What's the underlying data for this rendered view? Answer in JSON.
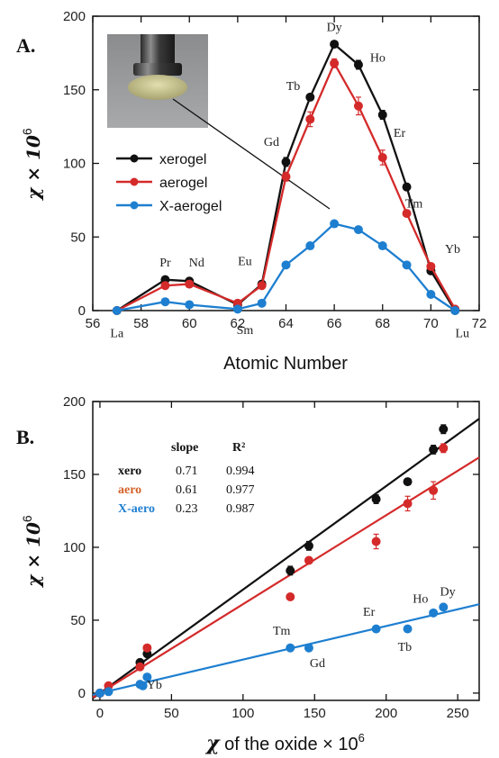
{
  "colors": {
    "xerogel": "#111111",
    "aerogel": "#d42a2a",
    "x_aerogel": "#1e7fd0"
  },
  "chart_data": [
    {
      "panel": "A.",
      "type": "line",
      "xlabel": "Atomic Number",
      "ylabel_main": "χ × 10",
      "ylabel_exp": "6",
      "xlim": [
        56,
        72
      ],
      "ylim": [
        0,
        200
      ],
      "xticks": [
        56,
        58,
        60,
        62,
        64,
        66,
        68,
        70,
        72
      ],
      "yticks": [
        0,
        50,
        100,
        150,
        200
      ],
      "grid": false,
      "legend_position": "middle-left",
      "series": [
        {
          "name": "xerogel",
          "key": "xerogel",
          "x": [
            57,
            59,
            60,
            62,
            63,
            64,
            65,
            66,
            67,
            68,
            69,
            70,
            71
          ],
          "y": [
            0,
            21,
            20,
            4,
            18,
            101,
            145,
            181,
            167,
            133,
            84,
            27,
            0
          ],
          "err": [
            0,
            2,
            2,
            1,
            2,
            3,
            2,
            2,
            3,
            3,
            2,
            2,
            0
          ]
        },
        {
          "name": "aerogel",
          "key": "aerogel",
          "x": [
            57,
            59,
            60,
            62,
            63,
            64,
            65,
            66,
            67,
            68,
            69,
            70,
            71
          ],
          "y": [
            0,
            17,
            18,
            5,
            17,
            91,
            130,
            168,
            139,
            104,
            66,
            30,
            1
          ],
          "err": [
            0,
            2,
            2,
            1,
            2,
            3,
            5,
            3,
            6,
            5,
            2,
            2,
            0
          ]
        },
        {
          "name": "X-aerogel",
          "key": "x_aerogel",
          "x": [
            57,
            59,
            60,
            62,
            63,
            64,
            65,
            66,
            67,
            68,
            69,
            70,
            71
          ],
          "y": [
            0,
            6,
            4,
            1,
            5,
            31,
            44,
            59,
            55,
            44,
            31,
            11,
            0
          ],
          "err": [
            0,
            1,
            1,
            1,
            1,
            1,
            1,
            1,
            1,
            1,
            1,
            1,
            0
          ]
        }
      ],
      "element_labels": [
        {
          "text": "La",
          "x": 57,
          "y": -18
        },
        {
          "text": "Pr",
          "x": 59,
          "y": 30
        },
        {
          "text": "Nd",
          "x": 60.3,
          "y": 30
        },
        {
          "text": "Sm",
          "x": 62.3,
          "y": -16
        },
        {
          "text": "Eu",
          "x": 62.3,
          "y": 31
        },
        {
          "text": "Gd",
          "x": 63.4,
          "y": 112
        },
        {
          "text": "Tb",
          "x": 64.3,
          "y": 150
        },
        {
          "text": "Dy",
          "x": 66,
          "y": 190
        },
        {
          "text": "Ho",
          "x": 67.8,
          "y": 169
        },
        {
          "text": "Er",
          "x": 68.7,
          "y": 118
        },
        {
          "text": "Tm",
          "x": 69.3,
          "y": 70
        },
        {
          "text": "Yb",
          "x": 70.9,
          "y": 39
        },
        {
          "text": "Lu",
          "x": 71.3,
          "y": -18
        }
      ]
    },
    {
      "panel": "B.",
      "type": "scatter",
      "xlabel_main": "χ",
      "xlabel_rest": " of the oxide × 10",
      "xlabel_exp": "6",
      "ylabel_main": "χ × 10",
      "ylabel_exp": "6",
      "xlim": [
        -5,
        265
      ],
      "ylim": [
        -5,
        200
      ],
      "xticks": [
        0,
        50,
        100,
        150,
        200,
        250
      ],
      "yticks": [
        0,
        50,
        100,
        150,
        200
      ],
      "grid": false,
      "table": {
        "headers": [
          "slope",
          "R²"
        ],
        "rows": [
          {
            "name": "xero",
            "key": "xerogel",
            "slope": "0.71",
            "r2": "0.994"
          },
          {
            "name": "aero",
            "key": "aerogel",
            "slope": "0.61",
            "r2": "0.977"
          },
          {
            "name": "X-aero",
            "key": "x_aerogel",
            "slope": "0.23",
            "r2": "0.987"
          }
        ]
      },
      "fit_lines": [
        {
          "key": "xerogel",
          "slope": 0.71,
          "intercept": 0
        },
        {
          "key": "aerogel",
          "slope": 0.61,
          "intercept": 0
        },
        {
          "key": "x_aerogel",
          "slope": 0.23,
          "intercept": 0
        }
      ],
      "series": [
        {
          "key": "xerogel",
          "x": [
            0,
            28,
            33,
            133,
            146,
            193,
            215,
            233,
            240
          ],
          "y": [
            0,
            21,
            27,
            84,
            101,
            133,
            145,
            167,
            181
          ],
          "err": [
            0,
            2,
            2,
            3,
            3,
            3,
            2,
            3,
            3
          ]
        },
        {
          "key": "aerogel",
          "x": [
            0,
            6,
            28,
            33,
            133,
            146,
            193,
            215,
            233,
            240
          ],
          "y": [
            0,
            5,
            18,
            31,
            66,
            91,
            104,
            130,
            139,
            168
          ],
          "err": [
            0,
            1,
            2,
            2,
            2,
            2,
            5,
            5,
            6,
            3
          ]
        },
        {
          "key": "x_aerogel",
          "x": [
            0,
            6,
            28,
            30,
            33,
            133,
            146,
            193,
            215,
            233,
            240
          ],
          "y": [
            0,
            1,
            6,
            5,
            11,
            31,
            31,
            44,
            44,
            55,
            59
          ],
          "err": [
            0,
            0,
            1,
            1,
            1,
            1,
            1,
            1,
            1,
            1,
            1
          ]
        }
      ],
      "element_labels": [
        {
          "text": "Yb",
          "x": 38,
          "y": 3
        },
        {
          "text": "Tm",
          "x": 127,
          "y": 40
        },
        {
          "text": "Gd",
          "x": 152,
          "y": 18
        },
        {
          "text": "Er",
          "x": 188,
          "y": 53
        },
        {
          "text": "Tb",
          "x": 213,
          "y": 29
        },
        {
          "text": "Ho",
          "x": 224,
          "y": 62
        },
        {
          "text": "Dy",
          "x": 243,
          "y": 67
        }
      ]
    }
  ]
}
